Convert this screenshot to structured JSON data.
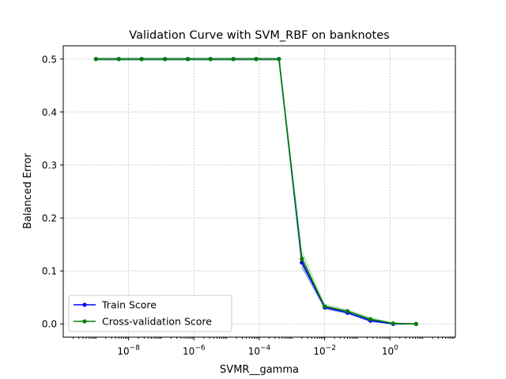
{
  "chart_data": {
    "type": "line",
    "title": "Validation Curve with SVM_RBF on banknotes",
    "xlabel": "SVMR__gamma",
    "ylabel": "Balanced Error",
    "xscale": "log",
    "xlim": [
      1e-10,
      100
    ],
    "ylim": [
      -0.025,
      0.525
    ],
    "grid": true,
    "legend_position": "lower-left",
    "x": [
      1e-09,
      5e-09,
      2.5e-08,
      1.3e-07,
      6.5e-07,
      3.2e-06,
      1.6e-05,
      8e-05,
      0.0004,
      0.002,
      0.01,
      0.05,
      0.25,
      1.25,
      6.25
    ],
    "x_ticks": [
      {
        "value": 1e-08,
        "base": "10",
        "exp": "−8"
      },
      {
        "value": 1e-06,
        "base": "10",
        "exp": "−6"
      },
      {
        "value": 0.0001,
        "base": "10",
        "exp": "−4"
      },
      {
        "value": 0.01,
        "base": "10",
        "exp": "−2"
      },
      {
        "value": 1,
        "base": "10",
        "exp": "0"
      }
    ],
    "y_ticks": [
      {
        "value": 0.0,
        "label": "0.0"
      },
      {
        "value": 0.1,
        "label": "0.1"
      },
      {
        "value": 0.2,
        "label": "0.2"
      },
      {
        "value": 0.3,
        "label": "0.3"
      },
      {
        "value": 0.4,
        "label": "0.4"
      },
      {
        "value": 0.5,
        "label": "0.5"
      }
    ],
    "series": [
      {
        "name": "Train Score",
        "color": "#0000ff",
        "marker": "circle",
        "values": [
          0.5,
          0.5,
          0.5,
          0.5,
          0.5,
          0.5,
          0.5,
          0.5,
          0.5,
          0.116,
          0.031,
          0.021,
          0.006,
          0.0,
          0.0
        ],
        "band": [
          0.003,
          0.003,
          0.003,
          0.003,
          0.003,
          0.003,
          0.003,
          0.003,
          0.003,
          0.012,
          0.004,
          0.003,
          0.003,
          0.001,
          0.001
        ]
      },
      {
        "name": "Cross-validation Score",
        "color": "#008000",
        "marker": "circle",
        "values": [
          0.5,
          0.5,
          0.5,
          0.5,
          0.5,
          0.5,
          0.5,
          0.5,
          0.5,
          0.123,
          0.033,
          0.024,
          0.009,
          0.001,
          0.0
        ],
        "band": [
          0.003,
          0.003,
          0.003,
          0.003,
          0.003,
          0.003,
          0.003,
          0.003,
          0.003,
          0.018,
          0.005,
          0.004,
          0.004,
          0.002,
          0.001
        ]
      }
    ]
  }
}
